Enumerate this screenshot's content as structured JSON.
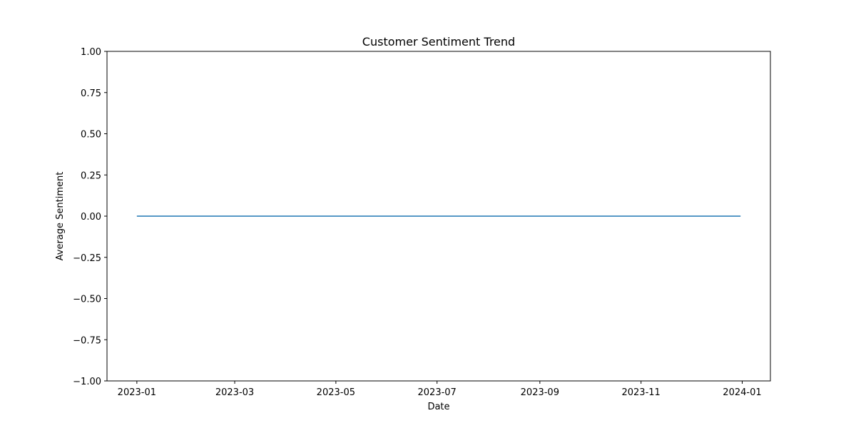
{
  "chart_data": {
    "type": "line",
    "title": "Customer Sentiment Trend",
    "xlabel": "Date",
    "ylabel": "Average Sentiment",
    "xlim": [
      "2022-12-14",
      "2024-01-18"
    ],
    "ylim": [
      -1.0,
      1.0
    ],
    "x_ticks": [
      "2023-01",
      "2023-03",
      "2023-05",
      "2023-07",
      "2023-09",
      "2023-11",
      "2024-01"
    ],
    "y_ticks": [
      "−1.00",
      "−0.75",
      "−0.50",
      "−0.25",
      "0.00",
      "0.25",
      "0.50",
      "0.75",
      "1.00"
    ],
    "grid": false,
    "series": [
      {
        "color": "#1f77b4",
        "points": [
          {
            "x": "2023-01-01",
            "y": 0.0
          },
          {
            "x": "2023-12-31",
            "y": 0.0
          }
        ]
      }
    ]
  }
}
